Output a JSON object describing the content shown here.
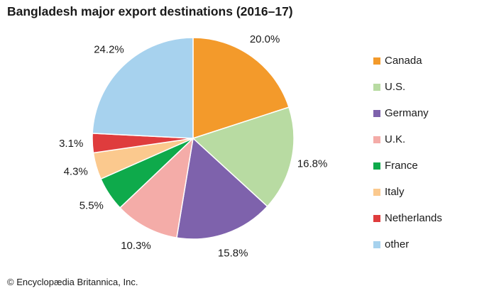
{
  "chart_data": {
    "type": "pie",
    "title": "Bangladesh major export destinations (2016–17)",
    "categories": [
      "Canada",
      "U.S.",
      "Germany",
      "U.K.",
      "France",
      "Italy",
      "Netherlands",
      "other"
    ],
    "values": [
      20.0,
      16.8,
      15.8,
      10.3,
      5.5,
      4.3,
      3.1,
      24.2
    ],
    "value_labels": [
      "20.0%",
      "16.8%",
      "15.8%",
      "10.3%",
      "5.5%",
      "4.3%",
      "3.1%",
      "24.2%"
    ],
    "colors": [
      "#f39a2b",
      "#b8dba2",
      "#7e62ac",
      "#f4aca8",
      "#0eaa4b",
      "#fbc98e",
      "#df3c3d",
      "#a7d2ee"
    ],
    "legend_position": "right"
  },
  "credit": "© Encyclopædia Britannica, Inc."
}
